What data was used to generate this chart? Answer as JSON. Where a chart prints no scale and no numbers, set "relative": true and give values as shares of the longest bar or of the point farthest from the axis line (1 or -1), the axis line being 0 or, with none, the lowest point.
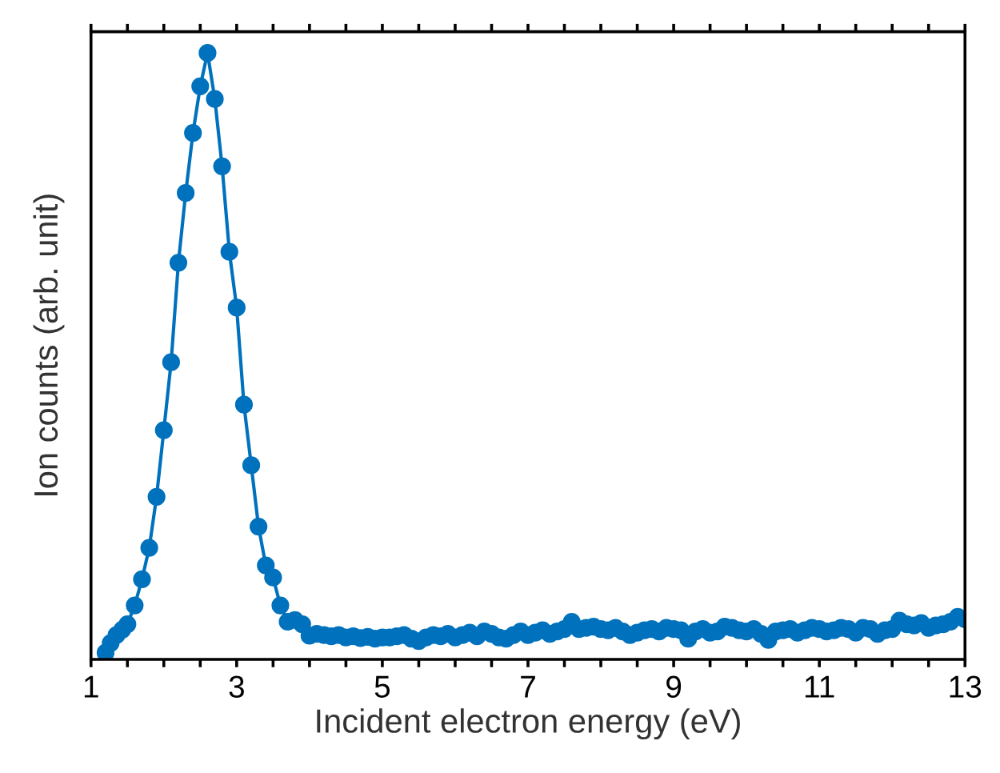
{
  "chart_data": {
    "type": "line",
    "relative": true,
    "xlabel": "Incident electron energy (eV)",
    "ylabel": "Ion counts (arb. unit)",
    "xlim": [
      1,
      13
    ],
    "xticks": [
      1,
      {
        "value": 1.5,
        "label": null
      },
      {
        "value": 2,
        "label": null
      },
      {
        "value": 2.5,
        "label": null
      },
      3,
      {
        "value": 3.5,
        "label": null
      },
      {
        "value": 4,
        "label": null
      },
      {
        "value": 4.5,
        "label": null
      },
      5,
      {
        "value": 5.5,
        "label": null
      },
      {
        "value": 6,
        "label": null
      },
      {
        "value": 6.5,
        "label": null
      },
      7,
      {
        "value": 7.5,
        "label": null
      },
      {
        "value": 8,
        "label": null
      },
      {
        "value": 8.5,
        "label": null
      },
      9,
      {
        "value": 9.5,
        "label": null
      },
      {
        "value": 10,
        "label": null
      },
      {
        "value": 10.5,
        "label": null
      },
      11,
      {
        "value": 11.5,
        "label": null
      },
      {
        "value": 12,
        "label": null
      },
      {
        "value": 12.5,
        "label": null
      },
      13
    ],
    "grid": false,
    "marker": "circle",
    "line_style": "solid",
    "series": [
      {
        "color": "#0072bd",
        "x": [
          1.2,
          1.27,
          1.35,
          1.43,
          1.5,
          1.6,
          1.7,
          1.8,
          1.9,
          2.0,
          2.1,
          2.2,
          2.3,
          2.4,
          2.5,
          2.6,
          2.7,
          2.8,
          2.9,
          3.0,
          3.1,
          3.2,
          3.3,
          3.4,
          3.5,
          3.6,
          3.7,
          3.8,
          3.9,
          4.0,
          4.1,
          4.2,
          4.3,
          4.4,
          4.5,
          4.6,
          4.7,
          4.8,
          4.9,
          5.0,
          5.1,
          5.2,
          5.3,
          5.4,
          5.5,
          5.6,
          5.7,
          5.8,
          5.9,
          6.0,
          6.1,
          6.2,
          6.3,
          6.4,
          6.5,
          6.6,
          6.7,
          6.8,
          6.9,
          7.0,
          7.1,
          7.2,
          7.3,
          7.4,
          7.5,
          7.6,
          7.7,
          7.8,
          7.9,
          8.0,
          8.1,
          8.2,
          8.3,
          8.4,
          8.5,
          8.6,
          8.7,
          8.8,
          8.9,
          9.0,
          9.1,
          9.2,
          9.3,
          9.4,
          9.5,
          9.6,
          9.7,
          9.8,
          9.9,
          10.0,
          10.1,
          10.2,
          10.3,
          10.4,
          10.5,
          10.6,
          10.7,
          10.8,
          10.9,
          11.0,
          11.1,
          11.2,
          11.3,
          11.4,
          11.5,
          11.6,
          11.7,
          11.8,
          11.9,
          12.0,
          12.1,
          12.2,
          12.3,
          12.4,
          12.5,
          12.6,
          12.7,
          12.8,
          12.9,
          13.0
        ],
        "values": [
          0.011,
          0.027,
          0.04,
          0.049,
          0.058,
          0.089,
          0.132,
          0.184,
          0.268,
          0.378,
          0.49,
          0.654,
          0.769,
          0.868,
          0.945,
          1,
          0.924,
          0.813,
          0.672,
          0.58,
          0.42,
          0.32,
          0.219,
          0.155,
          0.135,
          0.089,
          0.062,
          0.065,
          0.058,
          0.039,
          0.042,
          0.04,
          0.038,
          0.04,
          0.036,
          0.038,
          0.035,
          0.037,
          0.034,
          0.036,
          0.036,
          0.038,
          0.04,
          0.034,
          0.03,
          0.036,
          0.04,
          0.038,
          0.042,
          0.036,
          0.04,
          0.044,
          0.038,
          0.046,
          0.042,
          0.036,
          0.034,
          0.04,
          0.046,
          0.04,
          0.044,
          0.048,
          0.042,
          0.046,
          0.05,
          0.062,
          0.05,
          0.052,
          0.054,
          0.05,
          0.048,
          0.052,
          0.046,
          0.04,
          0.044,
          0.048,
          0.05,
          0.046,
          0.052,
          0.05,
          0.048,
          0.034,
          0.046,
          0.05,
          0.044,
          0.046,
          0.054,
          0.052,
          0.048,
          0.046,
          0.05,
          0.042,
          0.032,
          0.046,
          0.048,
          0.05,
          0.044,
          0.048,
          0.052,
          0.05,
          0.046,
          0.048,
          0.052,
          0.05,
          0.044,
          0.052,
          0.05,
          0.042,
          0.048,
          0.05,
          0.064,
          0.058,
          0.056,
          0.06,
          0.052,
          0.056,
          0.058,
          0.062,
          0.07,
          0.066
        ]
      }
    ]
  }
}
